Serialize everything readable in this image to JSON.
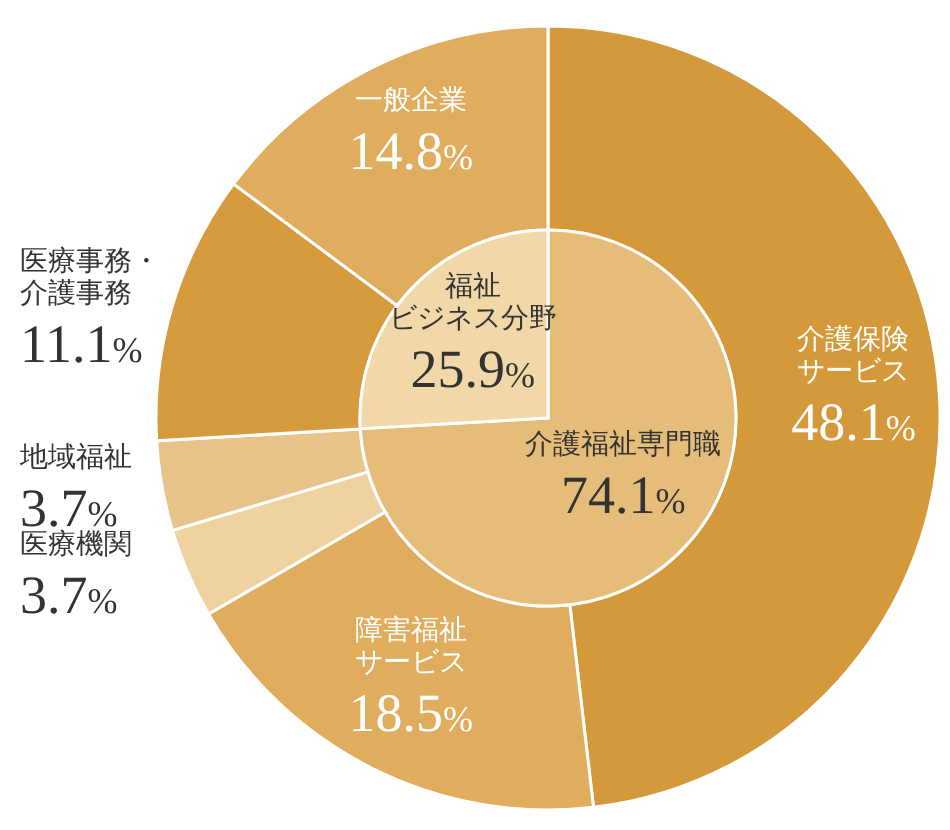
{
  "chart_data": [
    {
      "type": "donut",
      "categories": [
        "介護保険サービス",
        "障害福祉サービス",
        "医療機関",
        "地域福祉",
        "医療事務・介護事務",
        "一般企業"
      ],
      "values": [
        48.1,
        18.5,
        3.7,
        3.7,
        11.1,
        14.8
      ],
      "colors": [
        "#d4993b",
        "#dfad5d",
        "#f0d2a0",
        "#e9c48a",
        "#d59b3d",
        "#dfad5d"
      ],
      "value_labels": [
        "48.1%",
        "18.5%",
        "3.7%",
        "3.7%",
        "11.1%",
        "14.8%"
      ]
    },
    {
      "type": "pie",
      "categories": [
        "介護福祉専門職",
        "福祉ビジネス分野"
      ],
      "values": [
        74.1,
        25.9
      ],
      "colors": [
        "#e6bd78",
        "#f2d8a8"
      ],
      "value_labels": [
        "74.1%",
        "25.9%"
      ]
    }
  ]
}
